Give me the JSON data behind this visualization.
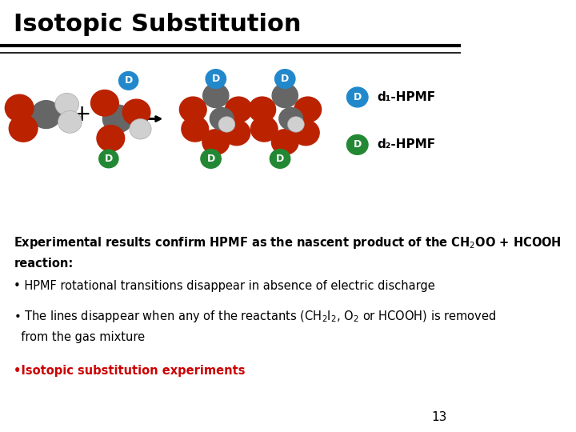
{
  "title": "Isotopic Substitution",
  "background_color": "#ffffff",
  "title_fontsize": 22,
  "line_color": "#000000",
  "page_number": "13",
  "d1_label": "d₁-HPMF",
  "d2_label": "d₂-HPMF",
  "d_blue_color": "#2288cc",
  "d_green_color": "#228833"
}
